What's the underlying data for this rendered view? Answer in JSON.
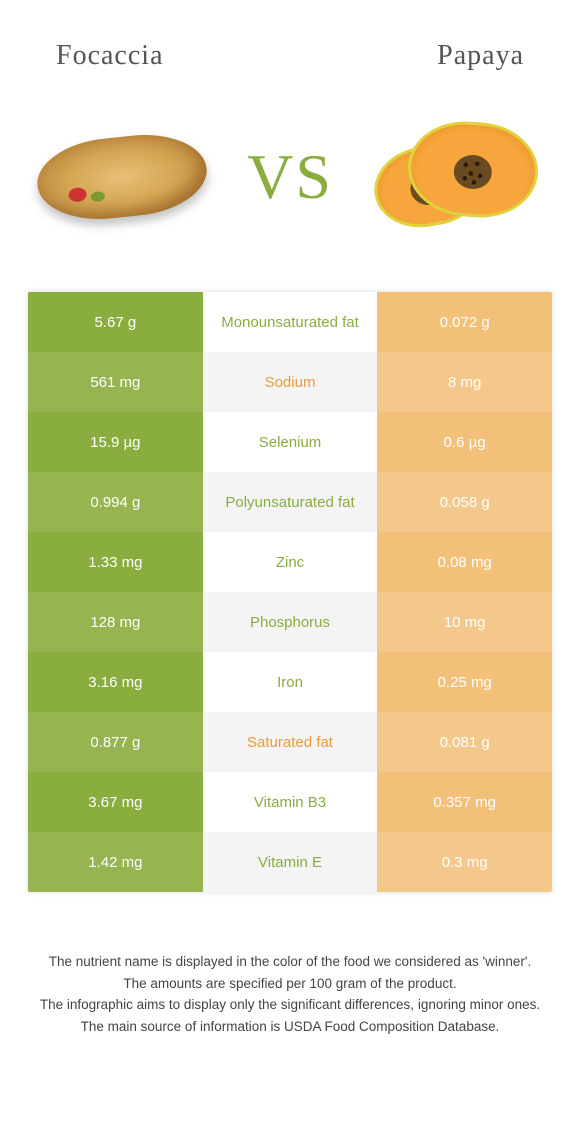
{
  "titles": {
    "left": "Focaccia",
    "right": "Papaya"
  },
  "vs_label": "VS",
  "colors": {
    "left_bg": "#8aad3f",
    "left_bg_alt": "#96b551",
    "right_bg": "#f3c07a",
    "right_bg_alt": "#f4c88a",
    "mid_bg": "#ffffff",
    "mid_bg_alt": "#f4f4f4",
    "winner_left_text": "#8aad3f",
    "winner_right_text": "#e99a3a",
    "title_text": "#555555",
    "vs_text": "#8aad3f"
  },
  "rows": [
    {
      "left": "5.67 g",
      "label": "Monounsaturated fat",
      "right": "0.072 g",
      "winner": "left"
    },
    {
      "left": "561 mg",
      "label": "Sodium",
      "right": "8 mg",
      "winner": "right"
    },
    {
      "left": "15.9 µg",
      "label": "Selenium",
      "right": "0.6 µg",
      "winner": "left"
    },
    {
      "left": "0.994 g",
      "label": "Polyunsaturated fat",
      "right": "0.058 g",
      "winner": "left"
    },
    {
      "left": "1.33 mg",
      "label": "Zinc",
      "right": "0.08 mg",
      "winner": "left"
    },
    {
      "left": "128 mg",
      "label": "Phosphorus",
      "right": "10 mg",
      "winner": "left"
    },
    {
      "left": "3.16 mg",
      "label": "Iron",
      "right": "0.25 mg",
      "winner": "left"
    },
    {
      "left": "0.877 g",
      "label": "Saturated fat",
      "right": "0.081 g",
      "winner": "right"
    },
    {
      "left": "3.67 mg",
      "label": "Vitamin B3",
      "right": "0.357 mg",
      "winner": "left"
    },
    {
      "left": "1.42 mg",
      "label": "Vitamin E",
      "right": "0.3 mg",
      "winner": "left"
    }
  ],
  "footer": [
    "The nutrient name is displayed in the color of the food we considered as 'winner'.",
    "The amounts are specified per 100 gram of the product.",
    "The infographic aims to display only the significant differences, ignoring minor ones.",
    "The main source of information is USDA Food Composition Database."
  ]
}
